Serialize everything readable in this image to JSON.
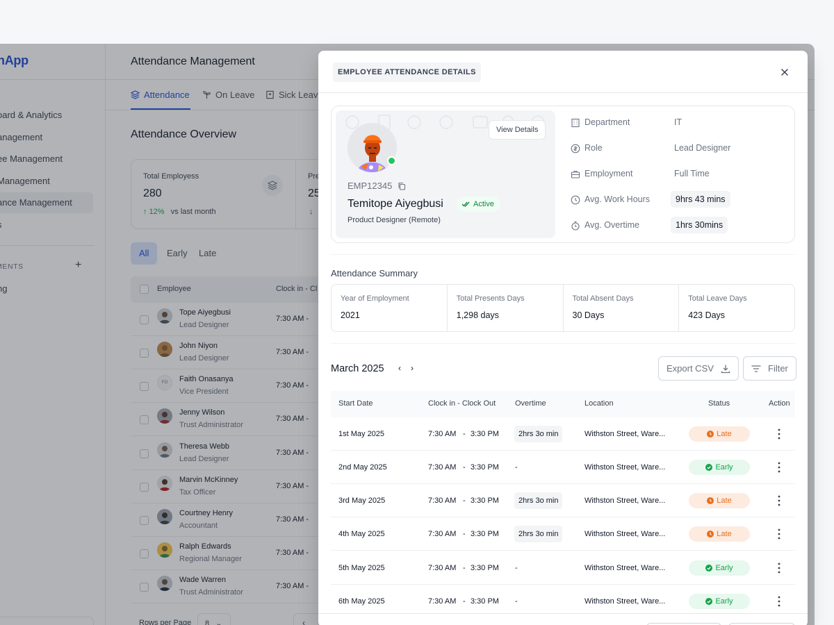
{
  "sidebar": {
    "logo": "nApp",
    "items": [
      {
        "label": "oard & Analytics"
      },
      {
        "label": "anagement"
      },
      {
        "label": "ee Management"
      },
      {
        "label": "Management"
      },
      {
        "label": "ance Management",
        "active": true
      },
      {
        "label": "s"
      }
    ],
    "section_label": "MENTS",
    "section_item": "ng"
  },
  "header": {
    "title": "Attendance Management",
    "tabs": [
      {
        "label": "Attendance",
        "active": true
      },
      {
        "label": "On Leave"
      },
      {
        "label": "Sick Leave"
      }
    ]
  },
  "overview": {
    "title": "Attendance Overview",
    "cards": [
      {
        "label": "Total Employess",
        "value": "280",
        "trend": "12%",
        "trend_suffix": "vs last month",
        "direction": "up"
      },
      {
        "label": "Pre",
        "value": "25",
        "direction": "down"
      }
    ]
  },
  "filters": [
    "All",
    "Early",
    "Late"
  ],
  "employee_table": {
    "columns": [
      "Employee",
      "Clock in - Cl"
    ],
    "rows": [
      {
        "name": "Tope Aiyegbusi",
        "role": "Lead Designer",
        "clock": "7:30 AM  -"
      },
      {
        "name": "John Niyon",
        "role": "Lead Designer",
        "clock": "7:30 AM  -"
      },
      {
        "name": "Faith Onasanya",
        "role": "Vice President",
        "clock": "7:30 AM  -",
        "initials": "FO"
      },
      {
        "name": "Jenny Wilson",
        "role": "Trust Administrator",
        "clock": "7:30 AM  -"
      },
      {
        "name": "Theresa Webb",
        "role": "Lead Designer",
        "clock": "7:30 AM  -"
      },
      {
        "name": "Marvin McKinney",
        "role": "Tax Officer",
        "clock": "7:30 AM  -"
      },
      {
        "name": "Courtney Henry",
        "role": "Accountant",
        "clock": "7:30 AM  -"
      },
      {
        "name": "Ralph Edwards",
        "role": "Regional Manager",
        "clock": "7:30 AM  -"
      },
      {
        "name": "Wade Warren",
        "role": "Trust Administrator",
        "clock": "7:30 AM  -"
      }
    ],
    "rows_per_page_label": "Rows per Page",
    "rows_per_page": "8"
  },
  "modal": {
    "title": "EMPLOYEE ATTENDANCE DETAILS",
    "profile": {
      "view_details": "View Details",
      "employee_id": "EMP12345",
      "name": "Temitope Aiyegbusi",
      "status": "Active",
      "job_title": "Product Designer (Remote)"
    },
    "info": [
      {
        "label": "Department",
        "value": "IT",
        "icon": "building-icon"
      },
      {
        "label": "Role",
        "value": "Lead Designer",
        "icon": "role-icon"
      },
      {
        "label": "Employment",
        "value": "Full Time",
        "icon": "briefcase-icon"
      },
      {
        "label": "Avg. Work Hours",
        "value": "9hrs 43 mins",
        "icon": "clock-icon",
        "pill": true
      },
      {
        "label": "Avg. Overtime",
        "value": "1hrs 30mins",
        "icon": "stopwatch-icon",
        "pill": true
      }
    ],
    "summary": {
      "title": "Attendance Summary",
      "cells": [
        {
          "label": "Year of Employment",
          "value": "2021"
        },
        {
          "label": "Total Presents Days",
          "value": "1,298 days"
        },
        {
          "label": "Total Absent Days",
          "value": "30 Days"
        },
        {
          "label": "Total Leave Days",
          "value": "423 Days"
        }
      ]
    },
    "month": "March 2025",
    "export_label": "Export CSV",
    "filter_label": "Filter",
    "columns": [
      "Start Date",
      "Clock in - Clock Out",
      "Overtime",
      "Location",
      "Status",
      "Action"
    ],
    "rows": [
      {
        "date": "1st May 2025",
        "clock_in": "7:30 AM",
        "clock_out": "3:30 PM",
        "overtime": "2hrs 3o min",
        "location": "Withston Street, Ware...",
        "status": "Late"
      },
      {
        "date": "2nd May 2025",
        "clock_in": "7:30 AM",
        "clock_out": "3:30 PM",
        "overtime": "-",
        "location": "Withston Street, Ware...",
        "status": "Early"
      },
      {
        "date": "3rd May 2025",
        "clock_in": "7:30 AM",
        "clock_out": "3:30 PM",
        "overtime": "2hrs 3o min",
        "location": "Withston Street, Ware...",
        "status": "Late"
      },
      {
        "date": "4th May 2025",
        "clock_in": "7:30 AM",
        "clock_out": "3:30 PM",
        "overtime": "2hrs 3o min",
        "location": "Withston Street, Ware...",
        "status": "Late"
      },
      {
        "date": "5th May 2025",
        "clock_in": "7:30 AM",
        "clock_out": "3:30 PM",
        "overtime": "-",
        "location": "Withston Street, Ware...",
        "status": "Early"
      },
      {
        "date": "6th May 2025",
        "clock_in": "7:30 AM",
        "clock_out": "3:30 PM",
        "overtime": "-",
        "location": "Withston Street, Ware...",
        "status": "Early"
      }
    ]
  },
  "colors": {
    "accent": "#1d4ed8",
    "late": "#ea6e1a",
    "early": "#16a34a",
    "active": "#22c55e"
  }
}
